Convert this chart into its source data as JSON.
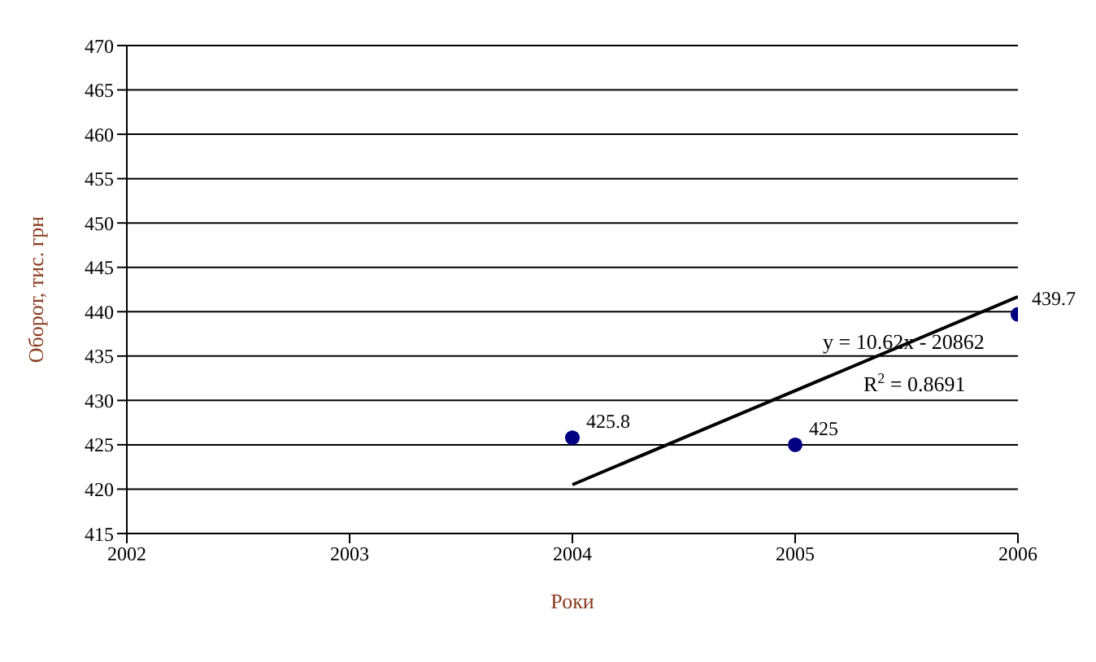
{
  "chart_data": {
    "type": "scatter",
    "xlabel": "Роки",
    "ylabel": "Оборот, тис. грн",
    "xlim": [
      2002,
      2006
    ],
    "xticks": [
      2002,
      2003,
      2004,
      2005,
      2006
    ],
    "ylim": [
      415,
      470
    ],
    "yticks": [
      415,
      420,
      425,
      430,
      435,
      440,
      445,
      450,
      455,
      460,
      465,
      470
    ],
    "grid": "y",
    "legend": false,
    "series": [
      {
        "color": "#000080",
        "marker": "circle",
        "x": [
          2004,
          2005,
          2006
        ],
        "values": [
          425.8,
          425,
          439.7
        ],
        "value_labels": [
          "425.8",
          "425",
          "439.7"
        ]
      },
      {
        "type": "line",
        "color": "#000000",
        "marker": "none",
        "line_style": "solid",
        "x": [
          2004,
          2006
        ],
        "values": [
          420.5,
          441.7
        ]
      }
    ],
    "annotations": [
      "y = 10.62x - 20862",
      "R$^{2}$ = 0.8691"
    ]
  }
}
